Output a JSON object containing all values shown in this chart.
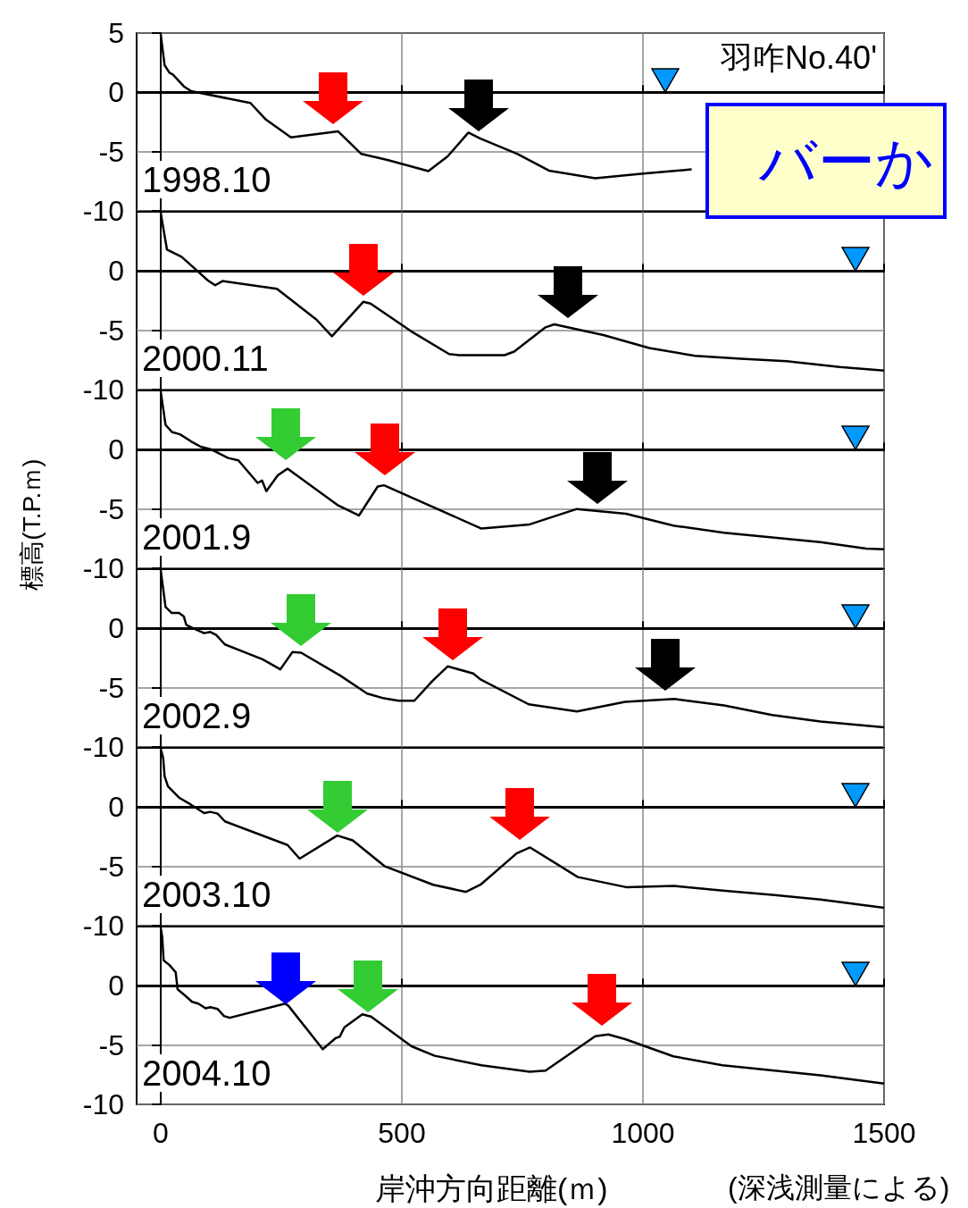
{
  "chart_data": [
    {
      "type": "line",
      "ylabel": null,
      "annotations": [
        "1998.10",
        "羽咋No.40'",
        "バーか"
      ],
      "xlim": [
        -50,
        1500
      ],
      "xticks": [
        0,
        500,
        1000,
        1500
      ],
      "ylim": [
        -10,
        5
      ],
      "yticks": [
        5,
        0,
        -5,
        -10
      ],
      "tick_labels": "y",
      "grid": true,
      "marker": "none",
      "line_style": "solid",
      "ref_lines": [
        {
          "axis": "y",
          "value": 0,
          "color": "#000000"
        }
      ],
      "series": [
        {
          "color": "#000000",
          "x": [
            0,
            8,
            18,
            25,
            48,
            63,
            186,
            218,
            270,
            368,
            416,
            470,
            555,
            595,
            638,
            663,
            740,
            805,
            901,
            1001,
            1101
          ],
          "values": [
            4.9,
            2.3,
            1.65,
            1.5,
            0.5,
            0.1,
            -0.9,
            -2.3,
            -3.8,
            -3.3,
            -5.2,
            -5.7,
            -6.65,
            -5.4,
            -3.4,
            -3.9,
            -5.2,
            -6.6,
            -7.25,
            -6.85,
            -6.5
          ]
        }
      ]
    },
    {
      "type": "line",
      "annotations": [
        "2000.11"
      ],
      "xlim": [
        -50,
        1500
      ],
      "xticks": [
        0,
        500,
        1000,
        1500
      ],
      "ylim": [
        -10,
        5
      ],
      "yticks": [
        0,
        -5,
        -10
      ],
      "tick_labels": "y",
      "grid": true,
      "marker": "none",
      "line_style": "solid",
      "ref_lines": [
        {
          "axis": "y",
          "value": 0,
          "color": "#000000"
        }
      ],
      "series": [
        {
          "color": "#000000",
          "x": [
            0,
            13,
            43,
            68,
            98,
            113,
            128,
            241,
            323,
            355,
            420,
            435,
            518,
            598,
            618,
            713,
            733,
            798,
            816,
            918,
            1013,
            1108,
            1203,
            1298,
            1408,
            1500
          ],
          "values": [
            4.9,
            1.8,
            1.2,
            0.3,
            -0.8,
            -1.2,
            -0.85,
            -1.5,
            -4.1,
            -5.5,
            -2.6,
            -2.75,
            -5.05,
            -7.0,
            -7.1,
            -7.1,
            -6.8,
            -4.75,
            -4.5,
            -5.4,
            -6.5,
            -7.15,
            -7.4,
            -7.6,
            -8.1,
            -8.4
          ]
        }
      ]
    },
    {
      "type": "line",
      "ylabel": "標高(T.P.ｍ)",
      "annotations": [
        "2001.9"
      ],
      "xlim": [
        -50,
        1500
      ],
      "xticks": [
        0,
        500,
        1000,
        1500
      ],
      "ylim": [
        -10,
        5
      ],
      "yticks": [
        0,
        -5,
        -10
      ],
      "tick_labels": "y",
      "grid": true,
      "marker": "none",
      "line_style": "solid",
      "ref_lines": [
        {
          "axis": "y",
          "value": 0,
          "color": "#000000"
        }
      ],
      "series": [
        {
          "color": "#000000",
          "x": [
            0,
            10,
            23,
            40,
            63,
            83,
            103,
            140,
            161,
            201,
            210,
            219,
            243,
            263,
            368,
            411,
            450,
            463,
            665,
            765,
            863,
            965,
            1063,
            1168,
            1368,
            1463,
            1500
          ],
          "values": [
            4.9,
            2.1,
            1.5,
            1.3,
            0.7,
            0.25,
            0.05,
            -0.7,
            -0.9,
            -2.8,
            -2.6,
            -3.5,
            -2.15,
            -1.6,
            -4.7,
            -5.55,
            -3.1,
            -3.0,
            -6.65,
            -6.3,
            -5.0,
            -5.4,
            -6.4,
            -7.0,
            -7.8,
            -8.35,
            -8.4
          ]
        }
      ]
    },
    {
      "type": "line",
      "annotations": [
        "2002.9"
      ],
      "xlim": [
        -50,
        1500
      ],
      "xticks": [
        0,
        500,
        1000,
        1500
      ],
      "ylim": [
        -10,
        5
      ],
      "yticks": [
        0,
        -5,
        -10
      ],
      "tick_labels": "y",
      "grid": true,
      "marker": "none",
      "line_style": "solid",
      "ref_lines": [
        {
          "axis": "y",
          "value": 0,
          "color": "#000000"
        }
      ],
      "series": [
        {
          "color": "#000000",
          "x": [
            0,
            10,
            23,
            38,
            48,
            53,
            68,
            90,
            103,
            115,
            133,
            211,
            248,
            273,
            291,
            373,
            428,
            463,
            493,
            526,
            563,
            595,
            648,
            663,
            763,
            863,
            963,
            1065,
            1168,
            1268,
            1368,
            1500
          ],
          "values": [
            4.9,
            1.8,
            1.3,
            1.3,
            1.0,
            0.3,
            0,
            -0.4,
            -0.3,
            -0.55,
            -1.35,
            -2.6,
            -3.45,
            -2.0,
            -2.05,
            -4.0,
            -5.5,
            -5.9,
            -6.1,
            -6.1,
            -4.45,
            -3.2,
            -3.8,
            -4.3,
            -6.4,
            -7.0,
            -6.2,
            -5.95,
            -6.5,
            -7.3,
            -7.85,
            -8.35
          ]
        }
      ]
    },
    {
      "type": "line",
      "annotations": [
        "2003.10"
      ],
      "xlim": [
        -50,
        1500
      ],
      "xticks": [
        0,
        500,
        1000,
        1500
      ],
      "ylim": [
        -10,
        5
      ],
      "yticks": [
        0,
        -5,
        -10
      ],
      "tick_labels": "y",
      "grid": true,
      "marker": "none",
      "line_style": "solid",
      "ref_lines": [
        {
          "axis": "y",
          "value": 0,
          "color": "#000000"
        }
      ],
      "series": [
        {
          "color": "#000000",
          "x": [
            0,
            5,
            8,
            15,
            38,
            63,
            90,
            103,
            118,
            133,
            263,
            288,
            366,
            398,
            465,
            565,
            633,
            663,
            738,
            766,
            865,
            965,
            1065,
            1165,
            1268,
            1368,
            1500
          ],
          "values": [
            4.9,
            4.15,
            2.6,
            1.75,
            0.8,
            0.2,
            -0.5,
            -0.4,
            -0.55,
            -1.2,
            -3.2,
            -4.35,
            -2.4,
            -2.8,
            -5.0,
            -6.55,
            -7.15,
            -6.55,
            -3.9,
            -3.4,
            -5.9,
            -6.75,
            -6.65,
            -7.05,
            -7.4,
            -7.8,
            -8.5
          ]
        }
      ]
    },
    {
      "type": "line",
      "xlabel": "岸沖方向距離(ｍ)",
      "annotations": [
        "2004.10",
        "(深浅測量による)"
      ],
      "xlim": [
        -50,
        1500
      ],
      "xticks": [
        0,
        500,
        1000,
        1500
      ],
      "ylim": [
        -10,
        5
      ],
      "yticks": [
        0,
        -5,
        -10
      ],
      "grid": true,
      "marker": "none",
      "line_style": "solid",
      "ref_lines": [
        {
          "axis": "y",
          "value": 0,
          "color": "#000000"
        }
      ],
      "series": [
        {
          "color": "#000000",
          "x": [
            0,
            3,
            6,
            18,
            31,
            35,
            50,
            65,
            78,
            93,
            103,
            118,
            131,
            143,
            258,
            265,
            336,
            363,
            371,
            381,
            418,
            436,
            520,
            568,
            665,
            765,
            798,
            901,
            928,
            963,
            1063,
            1165,
            1368,
            1500
          ],
          "values": [
            4.9,
            4.15,
            2.15,
            1.75,
            1.15,
            -0.3,
            -0.8,
            -1.35,
            -1.5,
            -1.9,
            -1.8,
            -1.95,
            -2.55,
            -2.7,
            -1.5,
            -1.7,
            -5.35,
            -4.4,
            -4.3,
            -3.5,
            -2.4,
            -2.6,
            -5.1,
            -5.9,
            -6.7,
            -7.25,
            -7.15,
            -4.25,
            -4.1,
            -4.5,
            -5.95,
            -6.7,
            -7.55,
            -8.25
          ]
        }
      ]
    }
  ]
}
